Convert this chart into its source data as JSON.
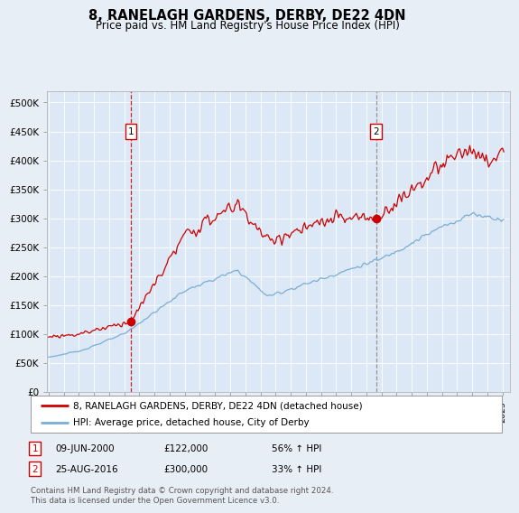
{
  "title": "8, RANELAGH GARDENS, DERBY, DE22 4DN",
  "subtitle": "Price paid vs. HM Land Registry's House Price Index (HPI)",
  "background_color": "#e8eef5",
  "plot_bg_color": "#dce8f5",
  "yticks": [
    0,
    50000,
    100000,
    150000,
    200000,
    250000,
    300000,
    350000,
    400000,
    450000,
    500000
  ],
  "ytick_labels": [
    "£0",
    "£50K",
    "£100K",
    "£150K",
    "£200K",
    "£250K",
    "£300K",
    "£350K",
    "£400K",
    "£450K",
    "£500K"
  ],
  "xlim_start": 1994.9,
  "xlim_end": 2025.5,
  "ylim_min": 0,
  "ylim_max": 520000,
  "sale1_date": 2000.44,
  "sale1_price": 122000,
  "sale2_date": 2016.65,
  "sale2_price": 300000,
  "legend_line1": "8, RANELAGH GARDENS, DERBY, DE22 4DN (detached house)",
  "legend_line2": "HPI: Average price, detached house, City of Derby",
  "footnote": "Contains HM Land Registry data © Crown copyright and database right 2024.\nThis data is licensed under the Open Government Licence v3.0.",
  "red_color": "#cc0000",
  "blue_color": "#7aaed6",
  "grid_color": "#ffffff",
  "vline1_color": "#cc0000",
  "vline2_color": "#888888"
}
